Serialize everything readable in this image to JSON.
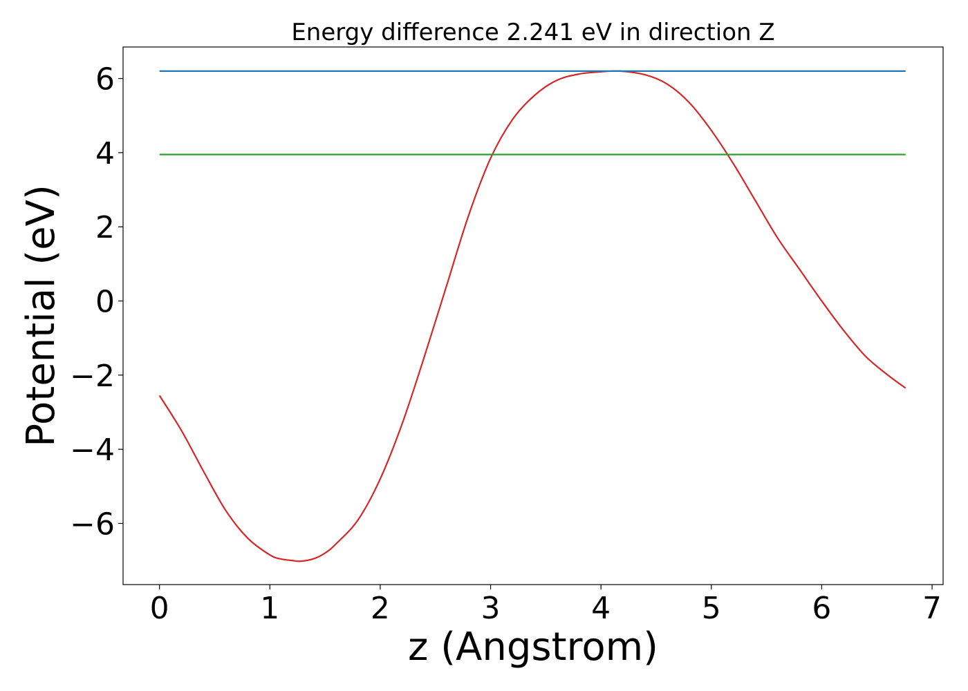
{
  "chart_data": {
    "type": "line",
    "title": "Energy difference 2.241 eV in direction Z",
    "xlabel": "z (Angstrom)",
    "ylabel": "Potential (eV)",
    "xlim": [
      -0.33,
      7.1
    ],
    "ylim": [
      -7.65,
      6.85
    ],
    "xticks": [
      0,
      1,
      2,
      3,
      4,
      5,
      6,
      7
    ],
    "xtick_labels": [
      "0",
      "1",
      "2",
      "3",
      "4",
      "5",
      "6",
      "7"
    ],
    "yticks": [
      -6,
      -4,
      -2,
      0,
      2,
      4,
      6
    ],
    "ytick_labels": [
      "−6",
      "−4",
      "−2",
      "0",
      "2",
      "4",
      "6"
    ],
    "grid": false,
    "series": [
      {
        "color": "#d62728",
        "x": [
          0.0,
          0.2,
          0.4,
          0.6,
          0.8,
          1.0,
          1.1,
          1.2,
          1.28,
          1.4,
          1.5,
          1.6,
          1.8,
          2.0,
          2.2,
          2.4,
          2.6,
          2.8,
          3.0,
          3.2,
          3.4,
          3.6,
          3.8,
          4.0,
          4.17,
          4.4,
          4.6,
          4.8,
          5.0,
          5.2,
          5.4,
          5.6,
          5.8,
          6.0,
          6.2,
          6.4,
          6.6,
          6.76
        ],
        "y": [
          -2.55,
          -3.5,
          -4.6,
          -5.65,
          -6.4,
          -6.85,
          -6.96,
          -7.0,
          -7.02,
          -6.95,
          -6.8,
          -6.55,
          -5.9,
          -4.8,
          -3.3,
          -1.5,
          0.4,
          2.3,
          3.85,
          4.9,
          5.55,
          5.95,
          6.12,
          6.18,
          6.2,
          6.1,
          5.85,
          5.35,
          4.6,
          3.7,
          2.7,
          1.7,
          0.85,
          0.0,
          -0.8,
          -1.5,
          -2.0,
          -2.35
        ]
      },
      {
        "color": "#1f77b4",
        "x": [
          0.0,
          6.76
        ],
        "y": [
          6.2,
          6.2
        ]
      },
      {
        "color": "#2ca02c",
        "x": [
          0.0,
          6.76
        ],
        "y": [
          3.95,
          3.95
        ]
      }
    ]
  }
}
